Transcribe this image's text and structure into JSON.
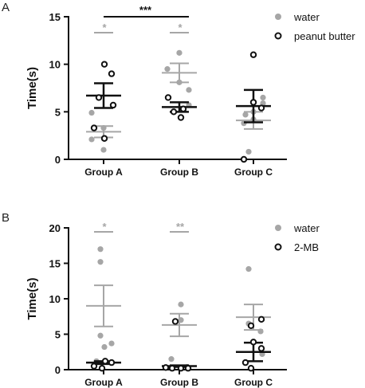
{
  "chart_data": [
    {
      "panel_label": "A",
      "type": "scatter",
      "ylabel": "Time(s)",
      "categories": [
        "Group A",
        "Group B",
        "Group C"
      ],
      "ylim": [
        0,
        15
      ],
      "yticks": [
        0,
        5,
        10,
        15
      ],
      "legend": {
        "placement": "top-right",
        "entries": [
          "water",
          "peanut butter"
        ]
      },
      "colors": {
        "water": "#a6a6a6",
        "treatment": "#111111"
      },
      "series": [
        {
          "name": "water",
          "marker": "filled-circle",
          "points": {
            "Group A": [
              4.9,
              3.3,
              2.1,
              1.0
            ],
            "Group B": [
              11.2,
              9.5,
              8.1,
              7.3,
              5.7
            ],
            "Group C": [
              6.5,
              5.9,
              5.0,
              4.7,
              4.2,
              3.8,
              0.8
            ]
          },
          "mean": [
            2.9,
            9.1,
            4.1
          ],
          "sem": [
            0.6,
            1.0,
            0.9
          ]
        },
        {
          "name": "peanut butter",
          "marker": "open-circle",
          "points": {
            "Group A": [
              10.0,
              9.0,
              6.5,
              5.7,
              3.3,
              2.2
            ],
            "Group B": [
              6.5,
              5.3,
              5.0,
              4.4
            ],
            "Group C": [
              11.0,
              6.0,
              5.4,
              0.0
            ]
          },
          "mean": [
            6.7,
            5.5,
            5.6
          ],
          "sem": [
            1.3,
            0.5,
            1.7
          ]
        }
      ],
      "annotations": [
        {
          "text": "*",
          "over": "Group A",
          "series": "water"
        },
        {
          "text": "*",
          "over": "Group B",
          "series": "water"
        },
        {
          "text": "***",
          "from": "Group A",
          "to": "Group B",
          "series": "peanut butter"
        }
      ]
    },
    {
      "panel_label": "B",
      "type": "scatter",
      "ylabel": "Time(s)",
      "categories": [
        "Group A",
        "Group B",
        "Group C"
      ],
      "ylim": [
        0,
        20
      ],
      "yticks": [
        0,
        5,
        10,
        15,
        20
      ],
      "legend": {
        "placement": "top-right",
        "entries": [
          "water",
          "2-MB"
        ]
      },
      "colors": {
        "water": "#a6a6a6",
        "treatment": "#111111"
      },
      "series": [
        {
          "name": "water",
          "marker": "filled-circle",
          "points": {
            "Group A": [
              17.0,
              15.2,
              4.8,
              3.7,
              3.2,
              1.2
            ],
            "Group B": [
              9.2,
              7.0,
              1.5,
              0.4
            ],
            "Group C": [
              14.2,
              6.5,
              5.4,
              2.2
            ]
          },
          "mean": [
            9.0,
            6.3,
            7.4
          ],
          "sem": [
            2.9,
            1.6,
            1.8
          ]
        },
        {
          "name": "2-MB",
          "marker": "open-circle",
          "points": {
            "Group A": [
              1.2,
              1.0,
              0.5,
              0.2
            ],
            "Group B": [
              6.8,
              0.3,
              0.2,
              0.2,
              0.2
            ],
            "Group C": [
              7.1,
              6.2,
              3.9,
              3.0,
              1.0,
              0.2
            ]
          },
          "mean": [
            1.0,
            0.5,
            2.5
          ],
          "sem": [
            0.2,
            0.1,
            1.3
          ]
        }
      ],
      "annotations": [
        {
          "text": "*",
          "over": "Group A",
          "series": "water"
        },
        {
          "text": "**",
          "over": "Group B",
          "series": "water"
        }
      ]
    }
  ]
}
